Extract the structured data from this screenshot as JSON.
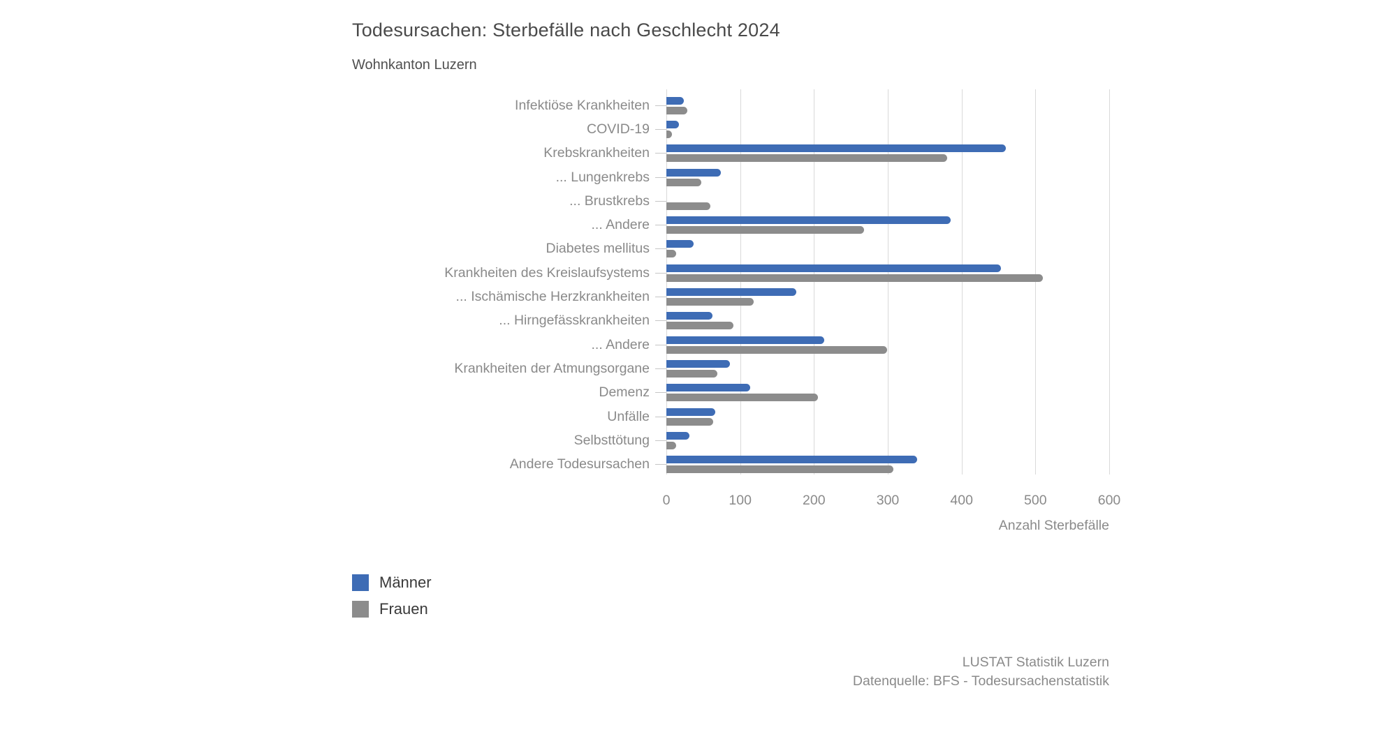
{
  "chart_data": {
    "type": "bar",
    "orientation": "horizontal",
    "title": "Todesursachen: Sterbefälle nach Geschlecht 2024",
    "subtitle": "Wohnkanton Luzern",
    "xlabel": "Anzahl Sterbefälle",
    "xlim": [
      0,
      600
    ],
    "x_ticks": [
      0,
      100,
      200,
      300,
      400,
      500,
      600
    ],
    "grid": true,
    "legend_position": "bottom-left",
    "categories": [
      "Infektiöse Krankheiten",
      "COVID-19",
      "Krebskrankheiten",
      "... Lungenkrebs",
      "... Brustkrebs",
      "... Andere",
      "Diabetes mellitus",
      "Krankheiten des Kreislaufsystems",
      "... Ischämische Herzkrankheiten",
      "... Hirngefässkrankheiten",
      "... Andere",
      "Krankheiten der Atmungsorgane",
      "Demenz",
      "Unfälle",
      "Selbsttötung",
      "Andere Todesursachen"
    ],
    "series": [
      {
        "name": "Männer",
        "color": "#3e6cb5",
        "values": [
          24,
          17,
          460,
          74,
          0,
          385,
          37,
          453,
          176,
          62,
          214,
          86,
          114,
          66,
          31,
          340
        ]
      },
      {
        "name": "Frauen",
        "color": "#8c8c8c",
        "values": [
          28,
          8,
          380,
          47,
          60,
          268,
          13,
          510,
          118,
          91,
          299,
          69,
          205,
          63,
          13,
          308
        ]
      }
    ]
  },
  "legend": {
    "items": [
      {
        "label": "Männer",
        "color": "#3e6cb5"
      },
      {
        "label": "Frauen",
        "color": "#8c8c8c"
      }
    ]
  },
  "source": {
    "line1": "LUSTAT Statistik Luzern",
    "line2": "Datenquelle: BFS - Todesursachenstatistik"
  },
  "colors": {
    "grid": "#d9d9d9",
    "axis_text": "#8a8a8a",
    "title_text": "#4a4a4a"
  }
}
